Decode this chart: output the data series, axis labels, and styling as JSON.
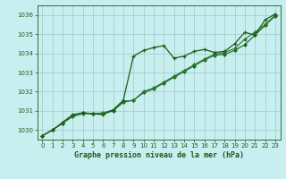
{
  "title": "Graphe pression niveau de la mer (hPa)",
  "background_color": "#c8eef0",
  "grid_color": "#a0c8c8",
  "line_color_dark": "#1a5c1a",
  "line_color_mid": "#2a7a2a",
  "xlim": [
    -0.5,
    23.5
  ],
  "ylim": [
    1029.5,
    1036.5
  ],
  "yticks": [
    1030,
    1031,
    1032,
    1033,
    1034,
    1035,
    1036
  ],
  "xticks": [
    0,
    1,
    2,
    3,
    4,
    5,
    6,
    7,
    8,
    9,
    10,
    11,
    12,
    13,
    14,
    15,
    16,
    17,
    18,
    19,
    20,
    21,
    22,
    23
  ],
  "series1_x": [
    0,
    1,
    2,
    3,
    4,
    5,
    6,
    7,
    8,
    9,
    10,
    11,
    12,
    13,
    14,
    15,
    16,
    17,
    18,
    19,
    20,
    21,
    22,
    23
  ],
  "series1_y": [
    1029.7,
    1030.0,
    1030.4,
    1030.8,
    1030.9,
    1030.85,
    1030.8,
    1031.05,
    1031.55,
    1033.85,
    1034.15,
    1034.3,
    1034.4,
    1033.75,
    1033.85,
    1034.1,
    1034.2,
    1034.05,
    1034.1,
    1034.5,
    1035.1,
    1034.95,
    1035.75,
    1036.05
  ],
  "series2_x": [
    0,
    1,
    2,
    3,
    4,
    5,
    6,
    7,
    8,
    9,
    10,
    11,
    12,
    13,
    14,
    15,
    16,
    17,
    18,
    19,
    20,
    21,
    22,
    23
  ],
  "series2_y": [
    1029.7,
    1030.0,
    1030.35,
    1030.75,
    1030.9,
    1030.85,
    1030.85,
    1031.0,
    1031.45,
    1031.55,
    1031.95,
    1032.15,
    1032.45,
    1032.75,
    1033.05,
    1033.35,
    1033.65,
    1033.9,
    1033.95,
    1034.15,
    1034.45,
    1034.95,
    1035.45,
    1035.95
  ],
  "series3_x": [
    0,
    1,
    2,
    3,
    4,
    5,
    6,
    7,
    8,
    9,
    10,
    11,
    12,
    13,
    14,
    15,
    16,
    17,
    18,
    19,
    20,
    21,
    22,
    23
  ],
  "series3_y": [
    1029.7,
    1030.0,
    1030.35,
    1030.7,
    1030.85,
    1030.85,
    1030.9,
    1031.05,
    1031.5,
    1031.55,
    1032.0,
    1032.2,
    1032.5,
    1032.8,
    1033.1,
    1033.4,
    1033.7,
    1033.95,
    1034.05,
    1034.25,
    1034.75,
    1035.1,
    1035.5,
    1036.0
  ]
}
